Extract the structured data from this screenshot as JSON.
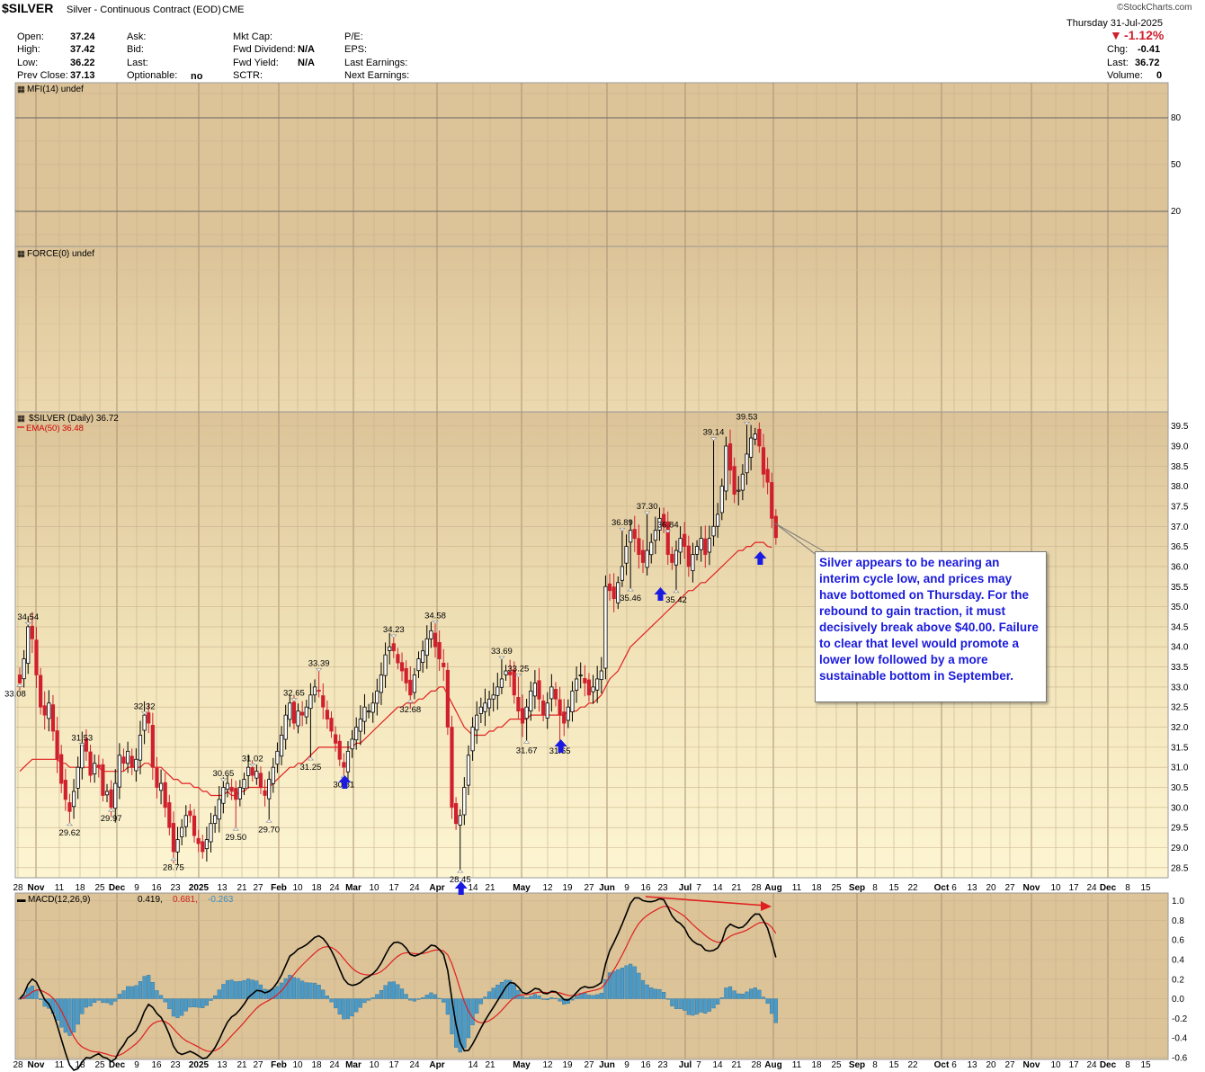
{
  "header": {
    "symbol": "$SILVER",
    "name": "Silver - Continuous Contract (EOD)",
    "exchange": "CME",
    "watermark": "©StockCharts.com",
    "date": "Thursday  31-Jul-2025",
    "change_pct": "-1.12%",
    "chg_label": "Chg:",
    "chg_value": "-0.41",
    "last_label": "Last:",
    "last_value": "36.72",
    "volume_label": "Volume:",
    "volume_value": "0",
    "fields_col1": [
      {
        "label": "Open:",
        "value": "37.24"
      },
      {
        "label": "High:",
        "value": "37.42"
      },
      {
        "label": "Low:",
        "value": "36.22"
      },
      {
        "label": "Prev Close:",
        "value": "37.13"
      }
    ],
    "fields_col2": [
      {
        "label": "Ask:",
        "value": ""
      },
      {
        "label": "Bid:",
        "value": ""
      },
      {
        "label": "Last:",
        "value": ""
      },
      {
        "label": "Optionable:",
        "value": "no"
      }
    ],
    "fields_col3": [
      {
        "label": "Mkt Cap:",
        "value": ""
      },
      {
        "label": "Fwd Dividend:",
        "value": "N/A"
      },
      {
        "label": "Fwd Yield:",
        "value": "N/A"
      },
      {
        "label": "SCTR:",
        "value": ""
      }
    ],
    "fields_col4": [
      {
        "label": "P/E:"
      },
      {
        "label": "EPS:"
      },
      {
        "label": "Last Earnings:"
      },
      {
        "label": "Next Earnings:"
      }
    ]
  },
  "colors": {
    "panel_bg": "#dcc398",
    "price_bg_top": "#dcc398",
    "price_bg_bottom": "#fcf3cd",
    "up": "#000000",
    "down": "#d0202e",
    "ema": "#e02020",
    "macd": "#000000",
    "signal": "#e02020",
    "hist": "#4a9bc9",
    "arrow": "#1a1ae0",
    "annotation_text": "#1a1adc"
  },
  "annotation": "Silver appears to be nearing an interim cycle low, and prices may have bottomed on Thursday. For the rebound to gain traction, it must decisively break above $40.00. Failure to clear that level would promote a lower low followed by a more sustainable bottom in September.",
  "chart_data": [
    {
      "type": "line",
      "panel": "MFI",
      "title": "MFI(14) undef",
      "y_ticks": [
        80,
        50,
        20
      ],
      "ylim": [
        0,
        100
      ]
    },
    {
      "type": "bar",
      "panel": "FORCE",
      "title": "FORCE(0) undef"
    },
    {
      "type": "candlestick",
      "panel": "price",
      "title": "$SILVER (Daily) 36.72",
      "ema_label": "EMA(50) 36.48",
      "ylim": [
        28.25,
        39.85
      ],
      "y_ticks": [
        28.5,
        29.0,
        29.5,
        30.0,
        30.5,
        31.0,
        31.5,
        32.0,
        32.5,
        33.0,
        33.5,
        34.0,
        34.5,
        35.0,
        35.5,
        36.0,
        36.5,
        37.0,
        37.5,
        38.0,
        38.5,
        39.0,
        39.5
      ],
      "y_tick_labels": [
        "28.5",
        "29.0",
        "29.5",
        "30.0",
        "30.5",
        "31.0",
        "31.5",
        "32.0",
        "32.5",
        "33.0",
        "33.5",
        "34.0",
        "34.5",
        "35.0",
        "35.5",
        "36.0",
        "36.5",
        "37.0",
        "37.5",
        "38.0",
        "38.5",
        "39.0",
        "39.5"
      ],
      "x_labels": [
        "28",
        "Nov",
        "11",
        "18",
        "25",
        "Dec",
        "9",
        "16",
        "23",
        "2025",
        "13",
        "21",
        "27",
        "Feb",
        "10",
        "18",
        "24",
        "Mar",
        "10",
        "17",
        "24",
        "Apr",
        "14",
        "21",
        "May",
        "12",
        "19",
        "27",
        "Jun",
        "9",
        "16",
        "23",
        "Jul",
        "7",
        "14",
        "21",
        "28",
        "Aug",
        "11",
        "18",
        "25",
        "Sep",
        "8",
        "15",
        "22",
        "Oct",
        "6",
        "13",
        "20",
        "27",
        "Nov",
        "10",
        "17",
        "24",
        "Dec",
        "8",
        "15"
      ],
      "x_label_bold": [
        "Nov",
        "Dec",
        "2025",
        "Feb",
        "Mar",
        "Apr",
        "May",
        "Jun",
        "Jul",
        "Aug",
        "Sep",
        "Oct",
        "Nov",
        "Dec"
      ],
      "close": [
        33.1,
        33.7,
        34.5,
        34.2,
        33.3,
        32.5,
        32.3,
        32.6,
        31.9,
        31.2,
        30.6,
        30.2,
        29.9,
        30.4,
        31.0,
        31.6,
        31.4,
        30.8,
        31.1,
        31.0,
        30.3,
        30.4,
        30.0,
        30.6,
        31.3,
        31.1,
        31.4,
        31.0,
        31.2,
        31.8,
        32.3,
        32.1,
        31.0,
        30.5,
        30.6,
        30.0,
        29.5,
        28.9,
        29.2,
        29.5,
        29.8,
        29.8,
        29.3,
        29.1,
        28.9,
        29.2,
        29.6,
        29.8,
        30.2,
        30.5,
        30.6,
        30.4,
        30.2,
        30.5,
        30.7,
        31.0,
        30.8,
        30.9,
        30.5,
        30.3,
        30.7,
        31.0,
        31.4,
        31.8,
        32.3,
        32.6,
        32.1,
        32.4,
        32.3,
        32.5,
        32.8,
        33.0,
        32.9,
        32.5,
        32.2,
        31.9,
        31.6,
        31.2,
        31.0,
        31.4,
        31.7,
        32.0,
        32.2,
        32.5,
        32.4,
        32.6,
        32.9,
        33.3,
        33.8,
        34.0,
        33.9,
        33.6,
        33.4,
        33.1,
        32.8,
        33.3,
        33.7,
        33.9,
        34.2,
        34.4,
        34.0,
        33.7,
        33.5,
        32.0,
        30.0,
        29.6,
        29.8,
        30.5,
        31.3,
        32.0,
        32.3,
        32.5,
        32.6,
        32.7,
        32.8,
        33.0,
        33.2,
        33.4,
        33.3,
        32.8,
        32.4,
        32.1,
        32.5,
        32.9,
        33.1,
        32.7,
        32.3,
        32.6,
        33.0,
        32.7,
        32.3,
        32.1,
        32.5,
        32.9,
        33.2,
        33.3,
        33.1,
        32.8,
        33.0,
        33.2,
        33.4,
        35.5,
        35.4,
        35.2,
        35.6,
        36.0,
        36.5,
        36.9,
        36.7,
        36.3,
        36.1,
        36.4,
        36.6,
        36.9,
        37.2,
        37.0,
        36.3,
        36.1,
        36.4,
        36.7,
        36.5,
        36.0,
        36.3,
        36.5,
        36.7,
        36.3,
        36.7,
        37.0,
        37.3,
        38.0,
        39.0,
        38.4,
        37.8,
        37.9,
        38.3,
        38.8,
        39.2,
        39.3,
        39.0,
        38.3,
        38.1,
        37.2,
        36.72
      ],
      "ema": [
        30.9,
        31.0,
        31.1,
        31.2,
        31.2,
        31.2,
        31.2,
        31.2,
        31.2,
        31.2,
        31.1,
        31.1,
        31.0,
        31.0,
        31.0,
        31.0,
        31.0,
        31.0,
        31.0,
        31.0,
        30.9,
        30.9,
        30.9,
        30.9,
        30.9,
        30.9,
        31.0,
        31.0,
        31.0,
        31.0,
        31.1,
        31.1,
        31.0,
        31.0,
        31.0,
        30.9,
        30.8,
        30.7,
        30.7,
        30.6,
        30.6,
        30.6,
        30.5,
        30.5,
        30.4,
        30.4,
        30.3,
        30.3,
        30.3,
        30.3,
        30.4,
        30.3,
        30.3,
        30.4,
        30.4,
        30.5,
        30.5,
        30.5,
        30.5,
        30.5,
        30.5,
        30.6,
        30.7,
        30.8,
        30.9,
        31.0,
        31.0,
        31.1,
        31.1,
        31.2,
        31.3,
        31.4,
        31.5,
        31.5,
        31.5,
        31.5,
        31.5,
        31.5,
        31.5,
        31.5,
        31.5,
        31.6,
        31.6,
        31.7,
        31.8,
        31.9,
        32.0,
        32.1,
        32.2,
        32.3,
        32.4,
        32.5,
        32.5,
        32.6,
        32.6,
        32.6,
        32.7,
        32.7,
        32.8,
        32.9,
        32.9,
        33.0,
        33.0,
        32.8,
        32.6,
        32.4,
        32.2,
        32.0,
        31.9,
        31.8,
        31.8,
        31.8,
        31.8,
        31.9,
        31.9,
        32.0,
        32.0,
        32.1,
        32.2,
        32.2,
        32.2,
        32.2,
        32.2,
        32.3,
        32.3,
        32.3,
        32.3,
        32.3,
        32.3,
        32.3,
        32.3,
        32.3,
        32.4,
        32.4,
        32.4,
        32.5,
        32.5,
        32.6,
        32.6,
        32.7,
        32.8,
        33.0,
        33.2,
        33.3,
        33.4,
        33.6,
        33.8,
        34.0,
        34.1,
        34.2,
        34.3,
        34.4,
        34.5,
        34.6,
        34.7,
        34.8,
        34.9,
        35.0,
        35.1,
        35.2,
        35.3,
        35.4,
        35.4,
        35.5,
        35.6,
        35.6,
        35.7,
        35.8,
        35.9,
        36.0,
        36.1,
        36.2,
        36.3,
        36.4,
        36.4,
        36.5,
        36.5,
        36.6,
        36.6,
        36.6,
        36.5,
        36.48
      ],
      "price_labels": [
        {
          "text": "34.54",
          "i": 2,
          "v": 34.54,
          "pos": "above"
        },
        {
          "text": "33.08",
          "i": 0,
          "v": 33.08,
          "pos": "left"
        },
        {
          "text": "31.53",
          "i": 15,
          "v": 31.53,
          "pos": "above"
        },
        {
          "text": "29.62",
          "i": 12,
          "v": 29.62,
          "pos": "below"
        },
        {
          "text": "29.97",
          "i": 22,
          "v": 29.97,
          "pos": "below"
        },
        {
          "text": "32.32",
          "i": 30,
          "v": 32.32,
          "pos": "above"
        },
        {
          "text": "28.75",
          "i": 37,
          "v": 28.75,
          "pos": "below"
        },
        {
          "text": "30.65",
          "i": 49,
          "v": 30.65,
          "pos": "above"
        },
        {
          "text": "29.50",
          "i": 52,
          "v": 29.5,
          "pos": "below"
        },
        {
          "text": "31.02",
          "i": 56,
          "v": 31.02,
          "pos": "above"
        },
        {
          "text": "29.70",
          "i": 60,
          "v": 29.7,
          "pos": "below"
        },
        {
          "text": "32.65",
          "i": 66,
          "v": 32.65,
          "pos": "above"
        },
        {
          "text": "33.39",
          "i": 72,
          "v": 33.39,
          "pos": "above"
        },
        {
          "text": "31.25",
          "i": 70,
          "v": 31.25,
          "pos": "below"
        },
        {
          "text": "30.81",
          "i": 78,
          "v": 30.81,
          "pos": "below"
        },
        {
          "text": "34.23",
          "i": 90,
          "v": 34.23,
          "pos": "above"
        },
        {
          "text": "32.68",
          "i": 94,
          "v": 32.68,
          "pos": "below"
        },
        {
          "text": "34.58",
          "i": 100,
          "v": 34.58,
          "pos": "above"
        },
        {
          "text": "28.45",
          "i": 106,
          "v": 28.45,
          "pos": "below"
        },
        {
          "text": "33.69",
          "i": 116,
          "v": 33.69,
          "pos": "above"
        },
        {
          "text": "33.25",
          "i": 120,
          "v": 33.25,
          "pos": "above"
        },
        {
          "text": "31.67",
          "i": 122,
          "v": 31.67,
          "pos": "below"
        },
        {
          "text": "31.65",
          "i": 130,
          "v": 31.65,
          "pos": "below"
        },
        {
          "text": "36.89",
          "i": 145,
          "v": 36.89,
          "pos": "above"
        },
        {
          "text": "35.46",
          "i": 147,
          "v": 35.46,
          "pos": "below"
        },
        {
          "text": "37.30",
          "i": 151,
          "v": 37.3,
          "pos": "above"
        },
        {
          "text": "36.84",
          "i": 156,
          "v": 36.84,
          "pos": "above"
        },
        {
          "text": "35.42",
          "i": 158,
          "v": 35.42,
          "pos": "below"
        },
        {
          "text": "39.14",
          "i": 167,
          "v": 39.14,
          "pos": "above"
        },
        {
          "text": "39.53",
          "i": 175,
          "v": 39.53,
          "pos": "above"
        }
      ],
      "buy_arrows": [
        78,
        106,
        130,
        154,
        178
      ]
    },
    {
      "type": "line",
      "panel": "MACD",
      "title_main": "MACD(12,26,9)",
      "title_macd": "0.419,",
      "title_signal": "0.681,",
      "title_hist": "-0.263",
      "ylim": [
        -0.62,
        1.08
      ],
      "y_ticks": [
        1.0,
        0.8,
        0.6,
        0.4,
        0.2,
        0.0,
        -0.2,
        -0.4,
        -0.6
      ],
      "y_tick_labels": [
        "1.0",
        "0.8",
        "0.6",
        "0.4",
        "0.2",
        "0.0",
        "-0.2",
        "-0.4",
        "-0.6"
      ],
      "x_labels": [
        "28",
        "Nov",
        "11",
        "18",
        "25",
        "Dec",
        "9",
        "16",
        "23",
        "2025",
        "13",
        "21",
        "27",
        "Feb",
        "10",
        "18",
        "24",
        "Mar",
        "10",
        "17",
        "24",
        "Apr",
        "14",
        "21",
        "May",
        "12",
        "19",
        "27",
        "Jun",
        "9",
        "16",
        "23",
        "Jul",
        "7",
        "14",
        "21",
        "28",
        "Aug",
        "11",
        "18",
        "25",
        "Sep",
        "8",
        "15",
        "22",
        "Oct",
        "6",
        "13",
        "20",
        "27",
        "Nov",
        "10",
        "17",
        "24",
        "Dec",
        "8",
        "15"
      ]
    }
  ]
}
